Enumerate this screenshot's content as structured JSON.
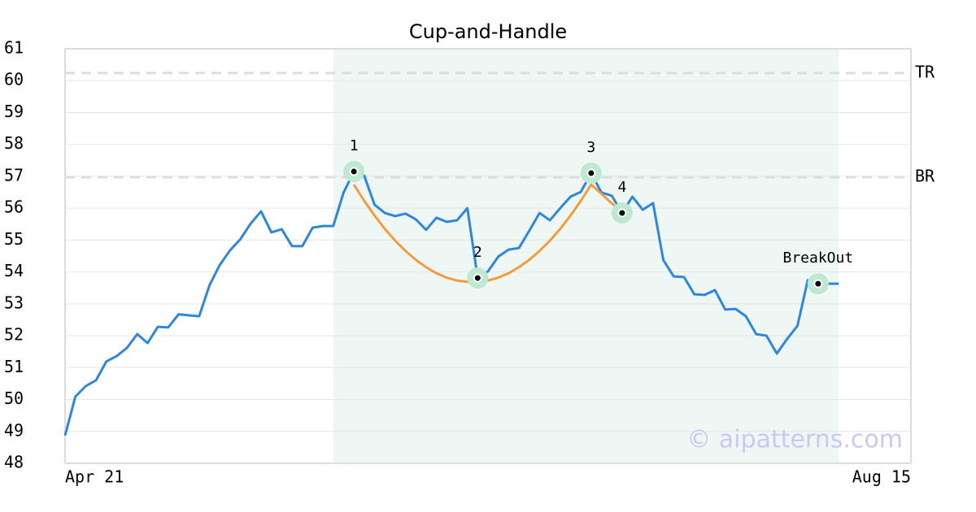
{
  "chart_data": {
    "type": "line",
    "title": "Cup-and-Handle",
    "categories": [
      "Apr 21",
      null,
      null,
      null,
      null,
      null,
      null,
      null,
      null,
      null,
      null,
      null,
      null,
      null,
      null,
      null,
      null,
      null,
      null,
      null,
      null,
      null,
      null,
      null,
      null,
      null,
      null,
      null,
      null,
      null,
      null,
      null,
      null,
      null,
      null,
      null,
      null,
      null,
      null,
      null,
      null,
      null,
      null,
      null,
      null,
      null,
      null,
      null,
      null,
      null,
      null,
      null,
      null,
      null,
      null,
      null,
      null,
      null,
      null,
      null,
      null,
      null,
      null,
      null,
      null,
      null,
      null,
      null,
      null,
      null,
      null,
      null,
      null,
      null,
      null,
      null,
      null,
      null,
      null,
      null,
      null,
      null,
      "Aug 15"
    ],
    "series": [
      {
        "color": "#2e86de",
        "values": [
          48.87,
          50.09,
          50.42,
          50.6,
          51.19,
          51.36,
          51.62,
          52.05,
          51.77,
          52.28,
          52.26,
          52.67,
          52.64,
          52.61,
          53.58,
          54.22,
          54.68,
          55.03,
          55.52,
          55.9,
          55.24,
          55.34,
          54.81,
          54.81,
          55.39,
          55.44,
          55.44,
          56.49,
          57.15,
          57.02,
          56.11,
          55.85,
          55.75,
          55.83,
          55.65,
          55.32,
          55.7,
          55.57,
          55.62,
          56.0,
          53.81,
          54.02,
          54.48,
          54.7,
          54.75,
          55.29,
          55.85,
          55.62,
          56.0,
          56.36,
          56.51,
          57.1,
          56.49,
          56.39,
          55.85,
          56.36,
          55.95,
          56.16,
          54.37,
          53.86,
          53.84,
          53.3,
          53.28,
          53.43,
          52.82,
          52.84,
          52.61,
          52.05,
          52.0,
          51.44,
          51.9,
          52.31,
          53.74,
          53.63,
          53.63,
          53.63,
          null,
          null,
          null,
          null,
          null,
          null,
          null
        ]
      },
      {
        "color": "#f39c3c",
        "values": [
          null,
          null,
          null,
          null,
          null,
          null,
          null,
          null,
          null,
          null,
          null,
          null,
          null,
          null,
          null,
          null,
          null,
          null,
          null,
          null,
          null,
          null,
          null,
          null,
          null,
          null,
          null,
          null,
          56.74,
          56.23,
          55.77,
          55.35,
          54.98,
          54.66,
          54.38,
          54.15,
          53.96,
          53.82,
          53.73,
          53.69,
          53.69,
          53.73,
          53.82,
          53.96,
          54.15,
          54.38,
          54.66,
          54.98,
          55.35,
          55.77,
          56.23,
          56.74,
          56.45,
          56.15,
          55.85,
          null,
          null,
          null,
          null,
          null,
          null,
          null,
          null,
          null,
          null,
          null,
          null,
          null,
          null,
          null,
          null,
          null,
          null,
          null,
          null,
          null,
          null,
          null,
          null,
          null,
          null,
          null,
          null
        ]
      }
    ],
    "points": [
      {
        "label": "1",
        "index": 28
      },
      {
        "label": "2",
        "index": 40
      },
      {
        "label": "3",
        "index": 51
      },
      {
        "label": "4",
        "index": 54
      },
      {
        "label": "BreakOut",
        "index": 73
      }
    ],
    "hlines": [
      {
        "label": "TR",
        "value": 60.24
      },
      {
        "label": "BR",
        "value": 56.97
      }
    ],
    "highlight": {
      "from": 26,
      "to": 75,
      "color": "#eef7f3"
    },
    "ylim": [
      48,
      61
    ],
    "yticks": [
      48,
      49,
      50,
      51,
      52,
      53,
      54,
      55,
      56,
      57,
      58,
      59,
      60,
      61
    ],
    "grid": true,
    "watermark": "© aipatterns.com"
  }
}
